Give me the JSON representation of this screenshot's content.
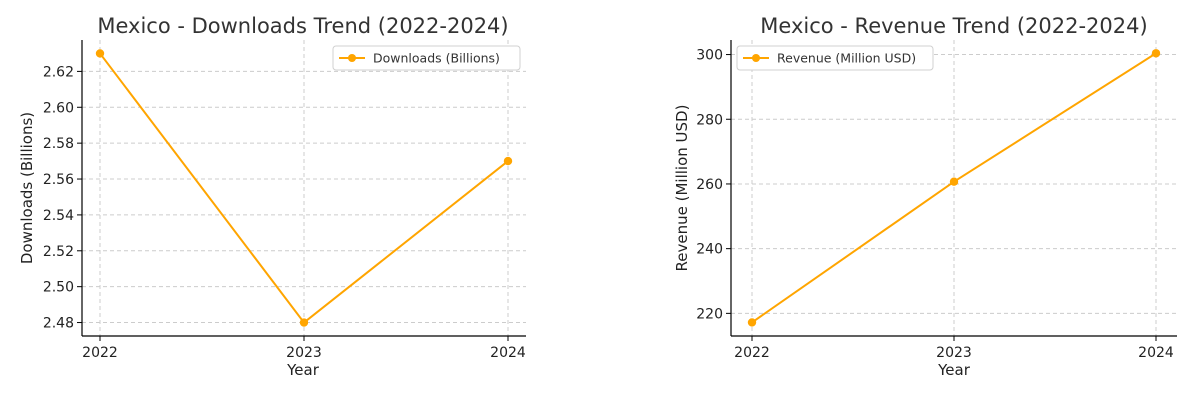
{
  "chart_data": [
    {
      "type": "line",
      "title": "Mexico - Downloads Trend (2022-2024)",
      "xlabel": "Year",
      "ylabel": "Downloads (Billions)",
      "categories": [
        "2022",
        "2023",
        "2024"
      ],
      "series": [
        {
          "name": "Downloads (Billions)",
          "values": [
            2.63,
            2.48,
            2.57
          ],
          "color": "#FFA500"
        }
      ],
      "yticks": [
        "2.48",
        "2.50",
        "2.52",
        "2.54",
        "2.56",
        "2.58",
        "2.60",
        "2.62"
      ],
      "ylim": [
        2.4725,
        2.6375
      ],
      "grid": true,
      "legend": "top-right"
    },
    {
      "type": "line",
      "title": "Mexico - Revenue Trend (2022-2024)",
      "xlabel": "Year",
      "ylabel": "Revenue (Million USD)",
      "categories": [
        "2022",
        "2023",
        "2024"
      ],
      "series": [
        {
          "name": "Revenue (Million USD)",
          "values": [
            217.2,
            260.7,
            300.4
          ],
          "color": "#FFA500"
        }
      ],
      "yticks": [
        "220",
        "240",
        "260",
        "280",
        "300"
      ],
      "ylim": [
        213.0,
        304.5
      ],
      "grid": true,
      "legend": "top-left"
    }
  ]
}
